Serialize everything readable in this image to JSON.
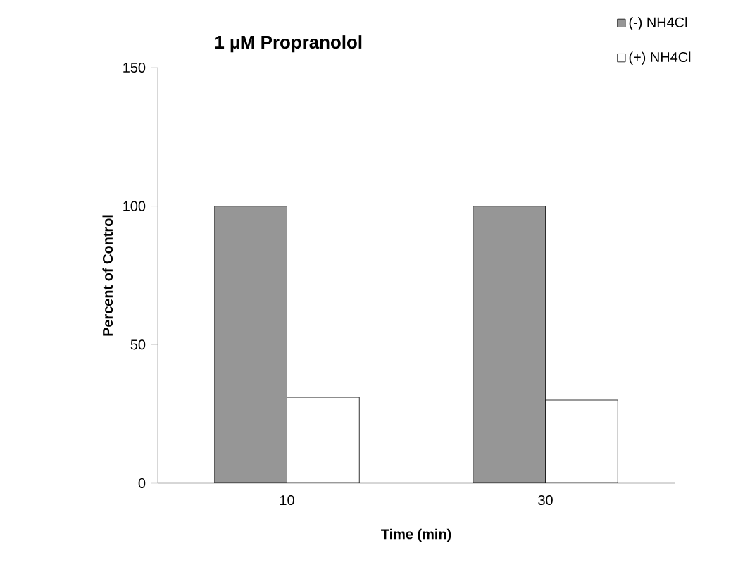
{
  "chart_data": {
    "type": "bar",
    "title": "1 µM Propranolol",
    "xlabel": "Time (min)",
    "ylabel": "Percent of Control",
    "categories": [
      "10",
      "30"
    ],
    "series": [
      {
        "name": "(-) NH4Cl",
        "color": "#969696",
        "values": [
          100,
          100
        ]
      },
      {
        "name": "(+) NH4Cl",
        "color": "#ffffff",
        "values": [
          31,
          30
        ]
      }
    ],
    "ylim": [
      0,
      150
    ],
    "yticks": [
      0,
      50,
      100,
      150
    ],
    "legend": "top right"
  }
}
